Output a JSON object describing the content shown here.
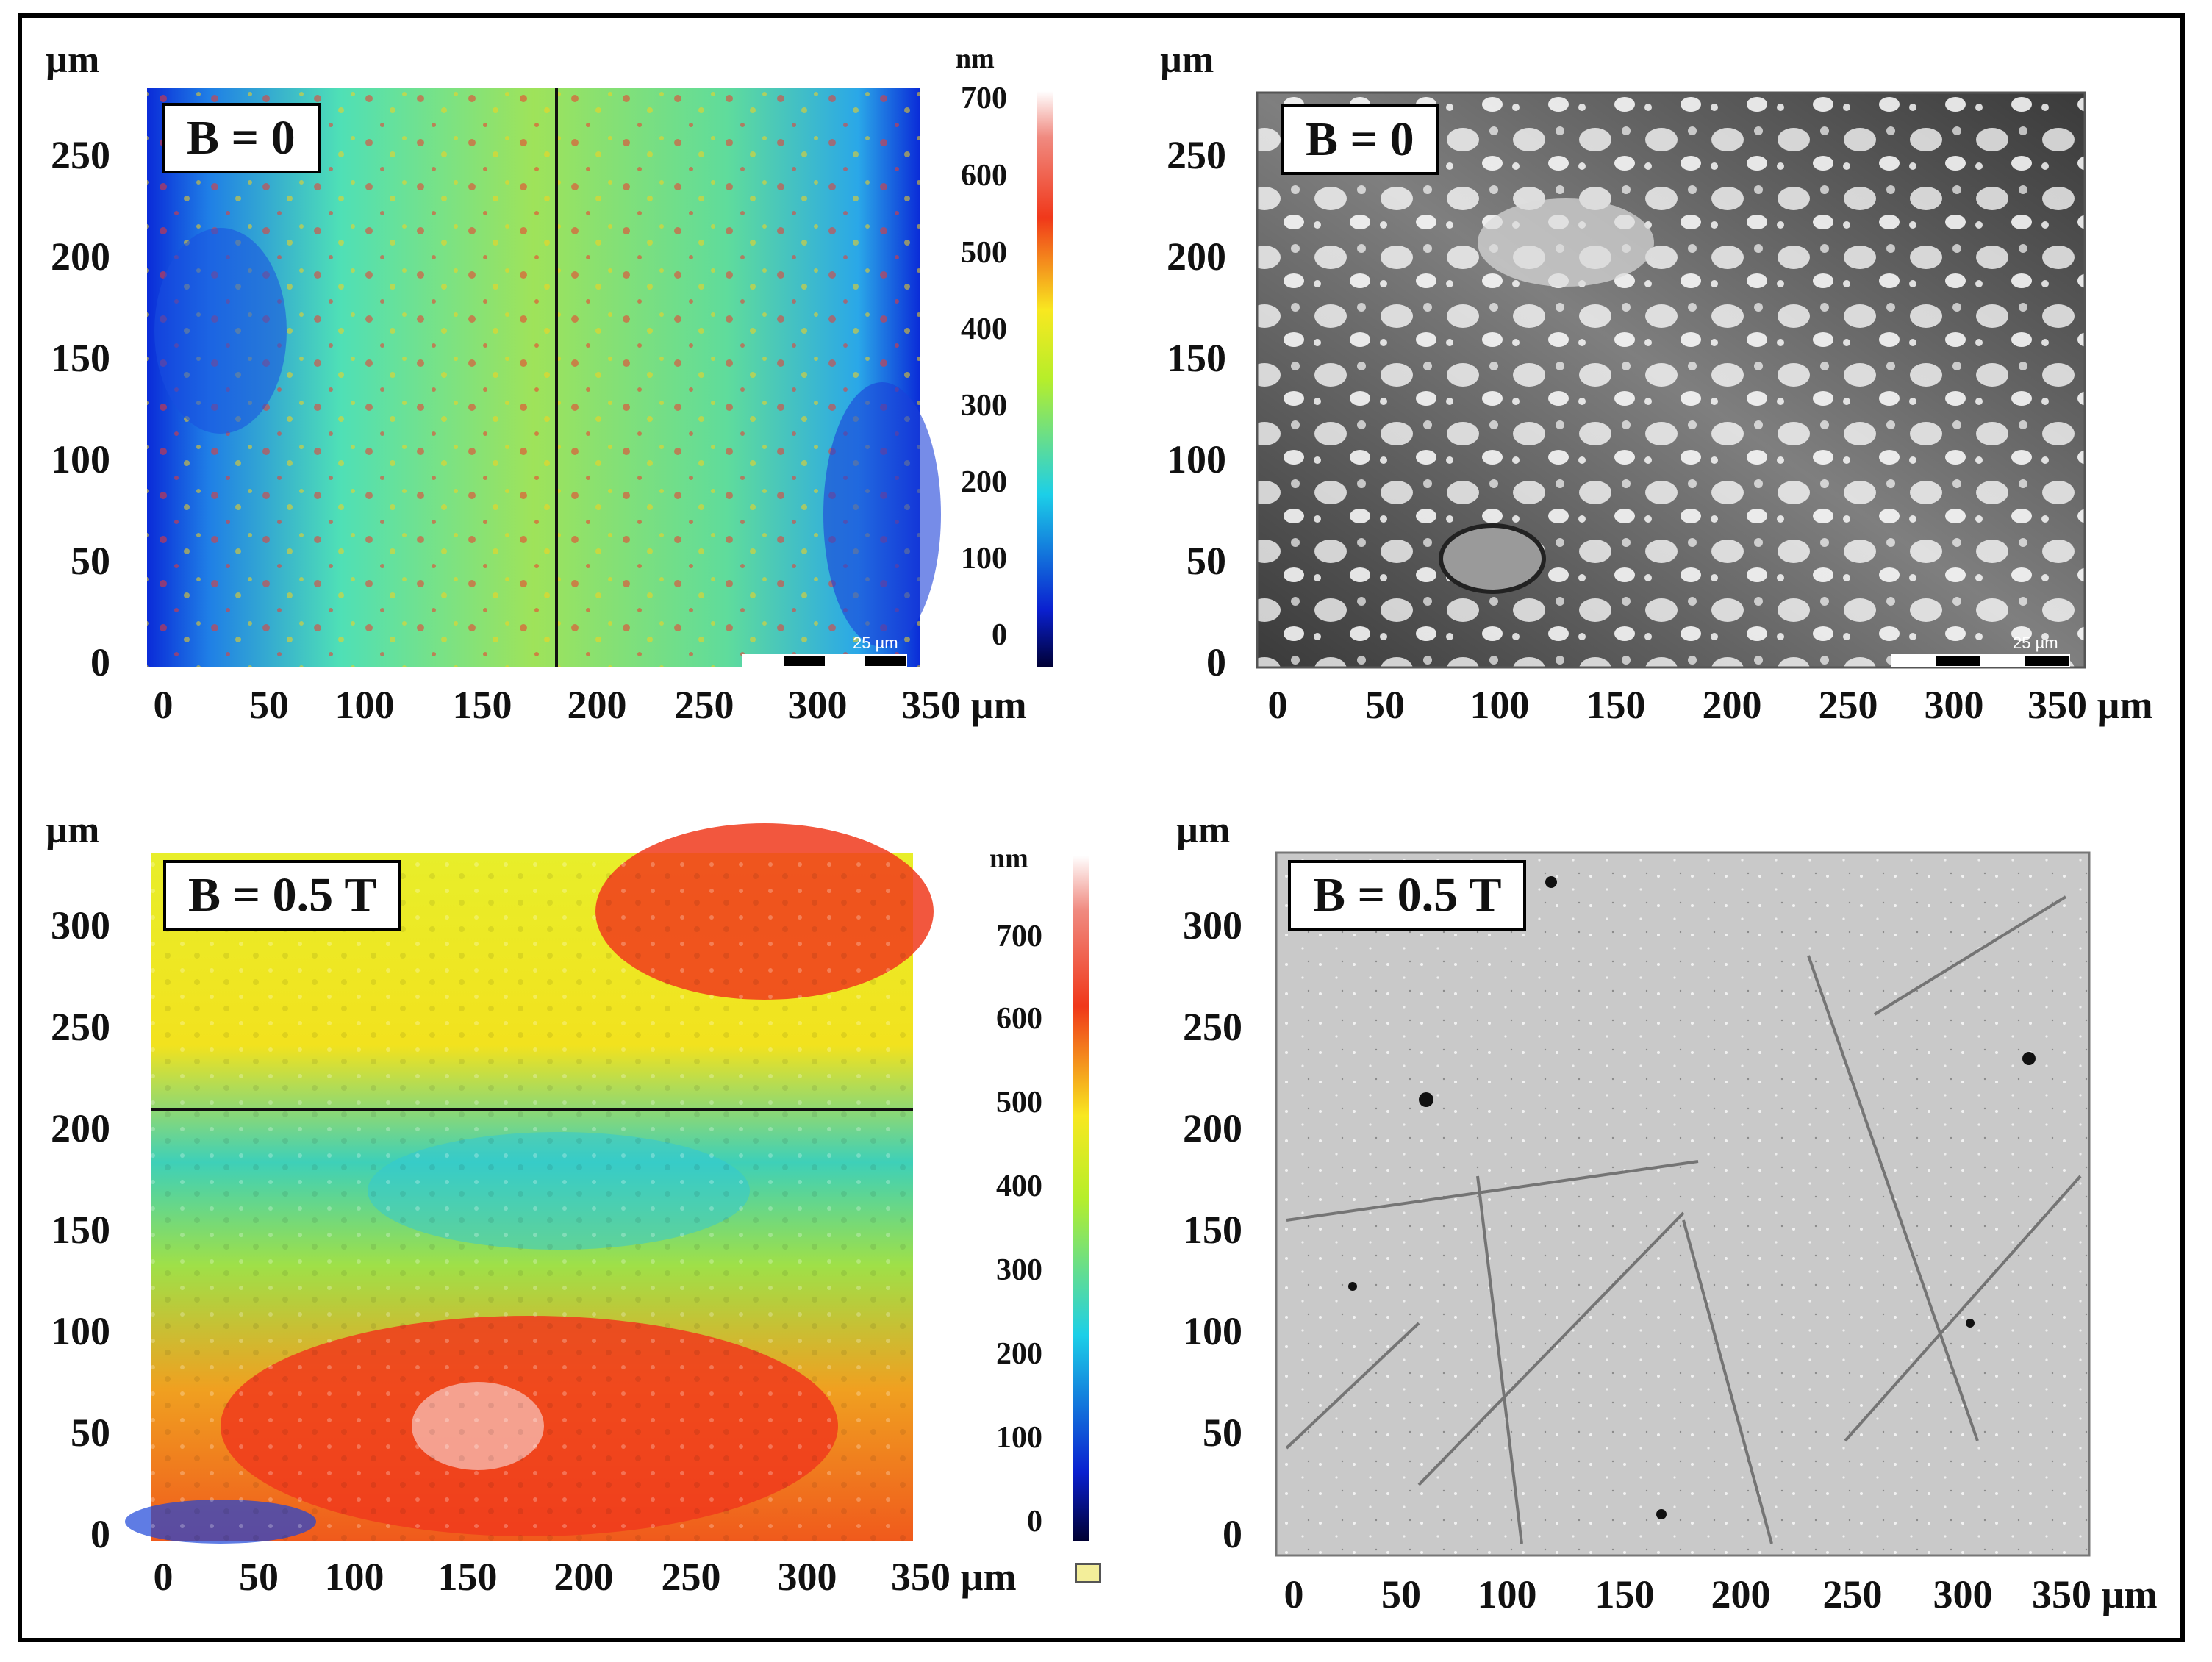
{
  "figure": {
    "unit": "µm",
    "x_axis_label": "350 µm",
    "x_ticks": [
      "0",
      "50",
      "100",
      "150",
      "200",
      "250",
      "300"
    ],
    "panels": [
      {
        "id": "a",
        "label": "B = 0",
        "type": "height-map",
        "y_ticks": [
          "250",
          "200",
          "150",
          "100",
          "50",
          "0"
        ],
        "colorbar": {
          "unit": "nm",
          "ticks": [
            "700",
            "600",
            "500",
            "400",
            "300",
            "200",
            "100",
            "0"
          ]
        },
        "scale_bar": "25 µm",
        "colors": {
          "low": "#0a2bd8",
          "mid": "#2fd3d0",
          "high": "#f2362c"
        }
      },
      {
        "id": "b",
        "label": "B = 0",
        "type": "optical-micrograph",
        "y_ticks": [
          "250",
          "200",
          "150",
          "100",
          "50",
          "0"
        ],
        "scale_bar": "25 µm",
        "colors": {
          "dark": "#2b2b2b",
          "light": "#e6e6e6"
        }
      },
      {
        "id": "c",
        "label": "B = 0.5 T",
        "type": "height-map",
        "y_ticks": [
          "300",
          "250",
          "200",
          "150",
          "100",
          "50",
          "0"
        ],
        "colorbar": {
          "unit": "nm",
          "ticks": [
            "700",
            "600",
            "500",
            "400",
            "300",
            "200",
            "100",
            "0"
          ]
        },
        "colors": {
          "low": "#1b44d8",
          "mid": "#e8ee2a",
          "high": "#f03a1c"
        }
      },
      {
        "id": "d",
        "label": "B = 0.5 T",
        "type": "optical-micrograph",
        "y_ticks": [
          "300",
          "250",
          "200",
          "150",
          "100",
          "50",
          "0"
        ],
        "colors": {
          "background": "#c9c9c9",
          "scratch": "#666666"
        }
      }
    ]
  }
}
